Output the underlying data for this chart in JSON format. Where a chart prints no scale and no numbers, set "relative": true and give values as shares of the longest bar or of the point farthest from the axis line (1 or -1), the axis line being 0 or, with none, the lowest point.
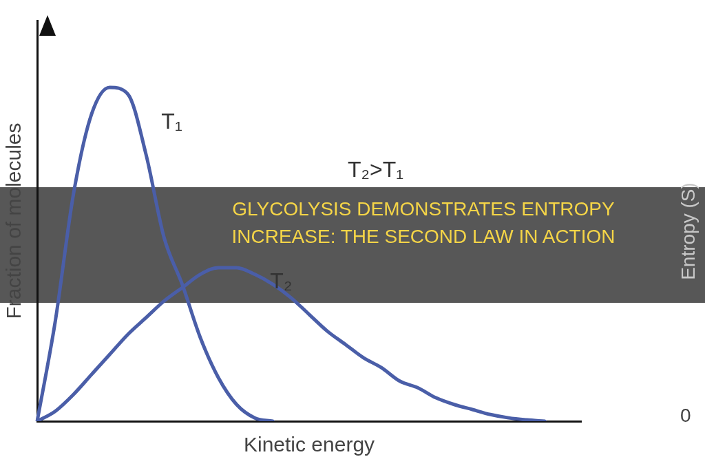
{
  "chart_data": {
    "type": "line",
    "title": "GLYCOLYSIS DEMONSTRATES ENTROPY INCREASE: THE SECOND LAW IN ACTION",
    "xlabel": "Kinetic energy",
    "ylabel": "Fraction of molecules",
    "relative": true,
    "marker": "none",
    "legend": false,
    "grid": false,
    "categories": [
      null,
      null,
      null,
      null,
      null,
      null,
      null,
      null,
      null,
      null,
      null,
      null,
      null,
      null,
      null,
      null,
      null,
      null,
      null,
      null,
      null,
      null,
      null,
      null,
      null,
      null,
      null,
      null,
      null,
      null,
      null
    ],
    "series": [
      {
        "name": "T₁",
        "color": "#4a5ea8",
        "values": [
          0,
          0.3,
          0.68,
          0.92,
          1.0,
          0.98,
          0.8,
          0.55,
          0.41,
          0.25,
          0.13,
          0.05,
          0.01,
          0,
          null,
          null,
          null,
          null,
          null,
          null,
          null,
          null,
          null,
          null,
          null,
          null,
          null,
          null,
          null,
          null,
          null
        ]
      },
      {
        "name": "T₂",
        "color": "#4a5ea8",
        "values": [
          0,
          0.03,
          0.08,
          0.14,
          0.2,
          0.26,
          0.31,
          0.36,
          0.4,
          0.44,
          0.46,
          0.46,
          0.44,
          0.41,
          0.37,
          0.32,
          0.27,
          0.23,
          0.19,
          0.16,
          0.12,
          0.1,
          0.07,
          0.05,
          0.035,
          0.02,
          0.01,
          0.004,
          0,
          null,
          null
        ]
      }
    ],
    "annotations": [
      "T₂>T₁",
      "Entropy (S)",
      "0"
    ]
  }
}
